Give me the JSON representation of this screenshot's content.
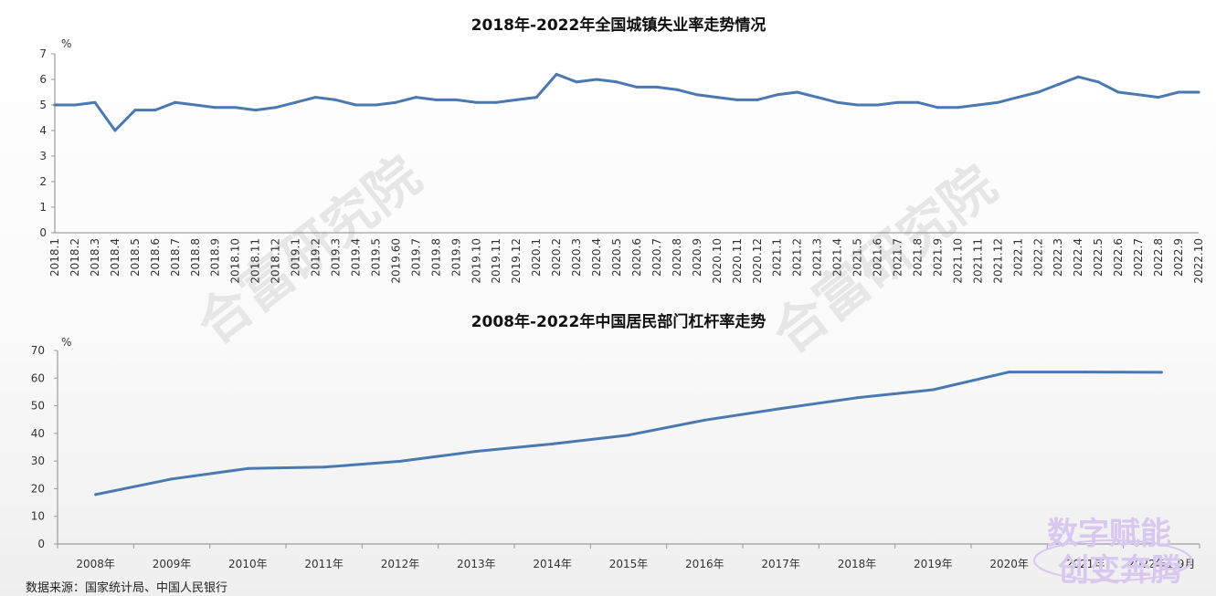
{
  "source_text": "数据来源：国家统计局、中国人民银行",
  "watermark": {
    "text": "合富研究院"
  },
  "logo": {
    "line1": "数字赋能",
    "line2": "创变奔腾"
  },
  "colors": {
    "line": "#4a78b0",
    "axis": "#888888",
    "watermark": "#e6e6e6",
    "logo": "#d8c7ef"
  },
  "chart_data": [
    {
      "type": "line",
      "title": "2018年-2022年全国城镇失业率走势情况",
      "ylabel": "%",
      "xlabel": "",
      "ylim": [
        0,
        7
      ],
      "yticks": [
        0,
        1,
        2,
        3,
        4,
        5,
        6,
        7
      ],
      "grid": false,
      "x": [
        "2018.1",
        "2018.2",
        "2018.3",
        "2018.4",
        "2018.5",
        "2018.6",
        "2018.7",
        "2018.8",
        "2018.9",
        "2018.10",
        "2018.11",
        "2018.12",
        "2019.1",
        "2019.2",
        "2019.3",
        "2019.4",
        "2019.5",
        "2019.60",
        "2019.7",
        "2019.8",
        "2019.9",
        "2019.10",
        "2019.11",
        "2019.12",
        "2020.1",
        "2020.2",
        "2020.3",
        "2020.4",
        "2020.5",
        "2020.6",
        "2020.7",
        "2020.8",
        "2020.9",
        "2020.10",
        "2020.11",
        "2020.12",
        "2021.1",
        "2021.2",
        "2021.3",
        "2021.4",
        "2021.5",
        "2021.6",
        "2021.7",
        "2021.8",
        "2021.9",
        "2021.10",
        "2021.11",
        "2021.12",
        "2022.1",
        "2022.2",
        "2022.3",
        "2022.4",
        "2022.5",
        "2022.6",
        "2022.7",
        "2022.8",
        "2022.9",
        "2022.10"
      ],
      "series": [
        {
          "values": [
            5.0,
            5.0,
            5.1,
            4.0,
            4.8,
            4.8,
            5.1,
            5.0,
            4.9,
            4.9,
            4.8,
            4.9,
            5.1,
            5.3,
            5.2,
            5.0,
            5.0,
            5.1,
            5.3,
            5.2,
            5.2,
            5.1,
            5.1,
            5.2,
            5.3,
            6.2,
            5.9,
            6.0,
            5.9,
            5.7,
            5.7,
            5.6,
            5.4,
            5.3,
            5.2,
            5.2,
            5.4,
            5.5,
            5.3,
            5.1,
            5.0,
            5.0,
            5.1,
            5.1,
            4.9,
            4.9,
            5.0,
            5.1,
            5.3,
            5.5,
            5.8,
            6.1,
            5.9,
            5.5,
            5.4,
            5.3,
            5.5,
            5.5
          ]
        }
      ]
    },
    {
      "type": "line",
      "title": "2008年-2022年中国居民部门杠杆率走势",
      "ylabel": "%",
      "xlabel": "",
      "ylim": [
        0,
        70
      ],
      "yticks": [
        0,
        10,
        20,
        30,
        40,
        50,
        60,
        70
      ],
      "grid": false,
      "x": [
        "2008年",
        "2009年",
        "2010年",
        "2011年",
        "2012年",
        "2013年",
        "2014年",
        "2015年",
        "2016年",
        "2017年",
        "2018年",
        "2019年",
        "2020年",
        "2021年",
        "2022年1-9月"
      ],
      "series": [
        {
          "values": [
            17.9,
            23.5,
            27.3,
            27.8,
            29.9,
            33.5,
            36.2,
            39.4,
            44.8,
            49.0,
            52.9,
            55.8,
            62.2,
            62.2,
            62.1
          ]
        }
      ]
    }
  ]
}
